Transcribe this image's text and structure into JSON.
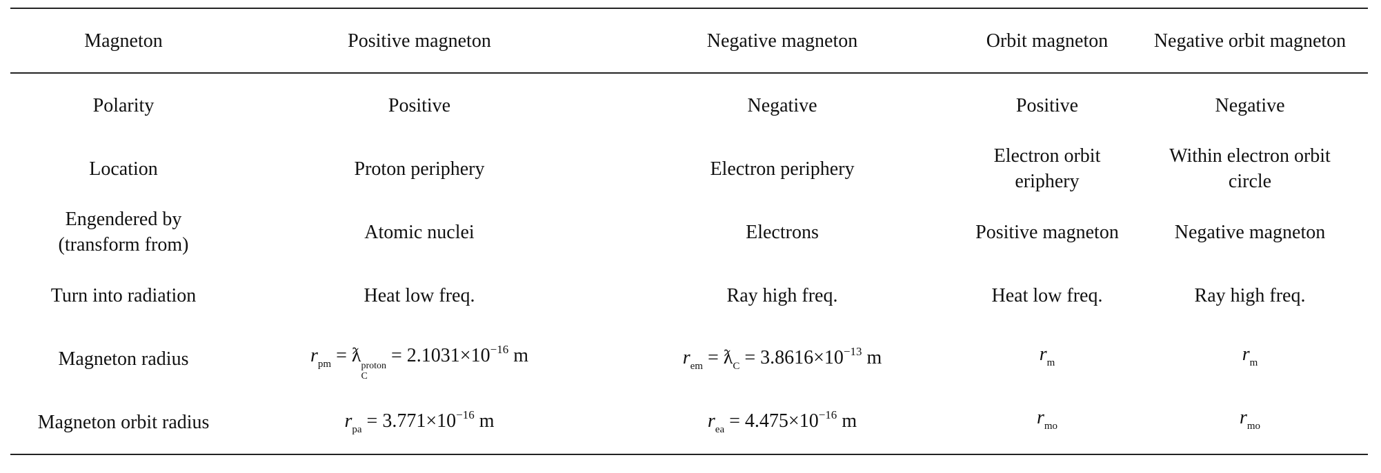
{
  "table": {
    "header": [
      "Magneton",
      "Positive magneton",
      "Negative magneton",
      "Orbit magneton",
      "Negative orbit magneton"
    ],
    "rows": [
      [
        "Polarity",
        "Positive",
        "Negative",
        "Positive",
        "Negative"
      ],
      [
        "Location",
        "Proton periphery",
        "Electron periphery",
        {
          "lines": [
            "Electron orbit",
            "eriphery"
          ]
        },
        {
          "lines": [
            "Within electron orbit",
            "circle"
          ]
        }
      ],
      [
        {
          "lines": [
            "Engendered by",
            "(transform from)"
          ]
        },
        "Atomic nuclei",
        "Electrons",
        "Positive magneton",
        "Negative magneton"
      ],
      [
        "Turn into radiation",
        "Heat low freq.",
        "Ray high freq.",
        "Heat low freq.",
        "Ray high freq."
      ],
      [
        "Magneton radius",
        [
          {
            "italic": "r"
          },
          {
            "sub": "pm"
          },
          " = ƛ",
          {
            "sub": "C",
            "sup": "proton"
          },
          " = 2.1031×10",
          {
            "sup": "−16"
          },
          " m"
        ],
        [
          {
            "italic": "r"
          },
          {
            "sub": "em"
          },
          " = ƛ",
          {
            "sub": "C"
          },
          " = 3.8616×10",
          {
            "sup": "−13"
          },
          " m"
        ],
        [
          {
            "italic": "r"
          },
          {
            "sub": "m"
          }
        ],
        [
          {
            "italic": "r"
          },
          {
            "sub": "m"
          }
        ]
      ],
      [
        "Magneton orbit radius",
        [
          {
            "italic": "r"
          },
          {
            "sub": "pa"
          },
          " = 3.771×10",
          {
            "sup": "−16"
          },
          " m"
        ],
        [
          {
            "italic": "r"
          },
          {
            "sub": "ea"
          },
          " = 4.475×10",
          {
            "sup": "−16"
          },
          " m"
        ],
        [
          {
            "italic": "r"
          },
          {
            "sub": "mo"
          }
        ],
        [
          {
            "italic": "r"
          },
          {
            "sub": "mo"
          }
        ]
      ]
    ]
  }
}
